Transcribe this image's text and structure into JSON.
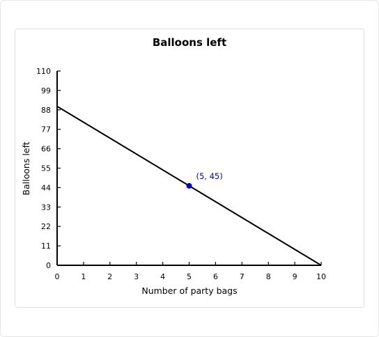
{
  "chart_data": {
    "type": "line",
    "title": "Balloons left",
    "xlabel": "Number of party bags",
    "ylabel": "Balloons left",
    "xlim": [
      0,
      10
    ],
    "ylim": [
      0,
      110
    ],
    "x_ticks": [
      0,
      1,
      2,
      3,
      4,
      5,
      6,
      7,
      8,
      9,
      10
    ],
    "y_ticks": [
      0,
      11,
      22,
      33,
      44,
      55,
      66,
      77,
      88,
      99,
      110
    ],
    "series": [
      {
        "name": "Balloons left",
        "x": [
          0,
          10
        ],
        "y": [
          90,
          0
        ],
        "color": "#000000"
      }
    ],
    "highlight_point": {
      "x": 5,
      "y": 45,
      "label": "(5, 45)",
      "color": "#0000cc"
    },
    "grid": false
  }
}
